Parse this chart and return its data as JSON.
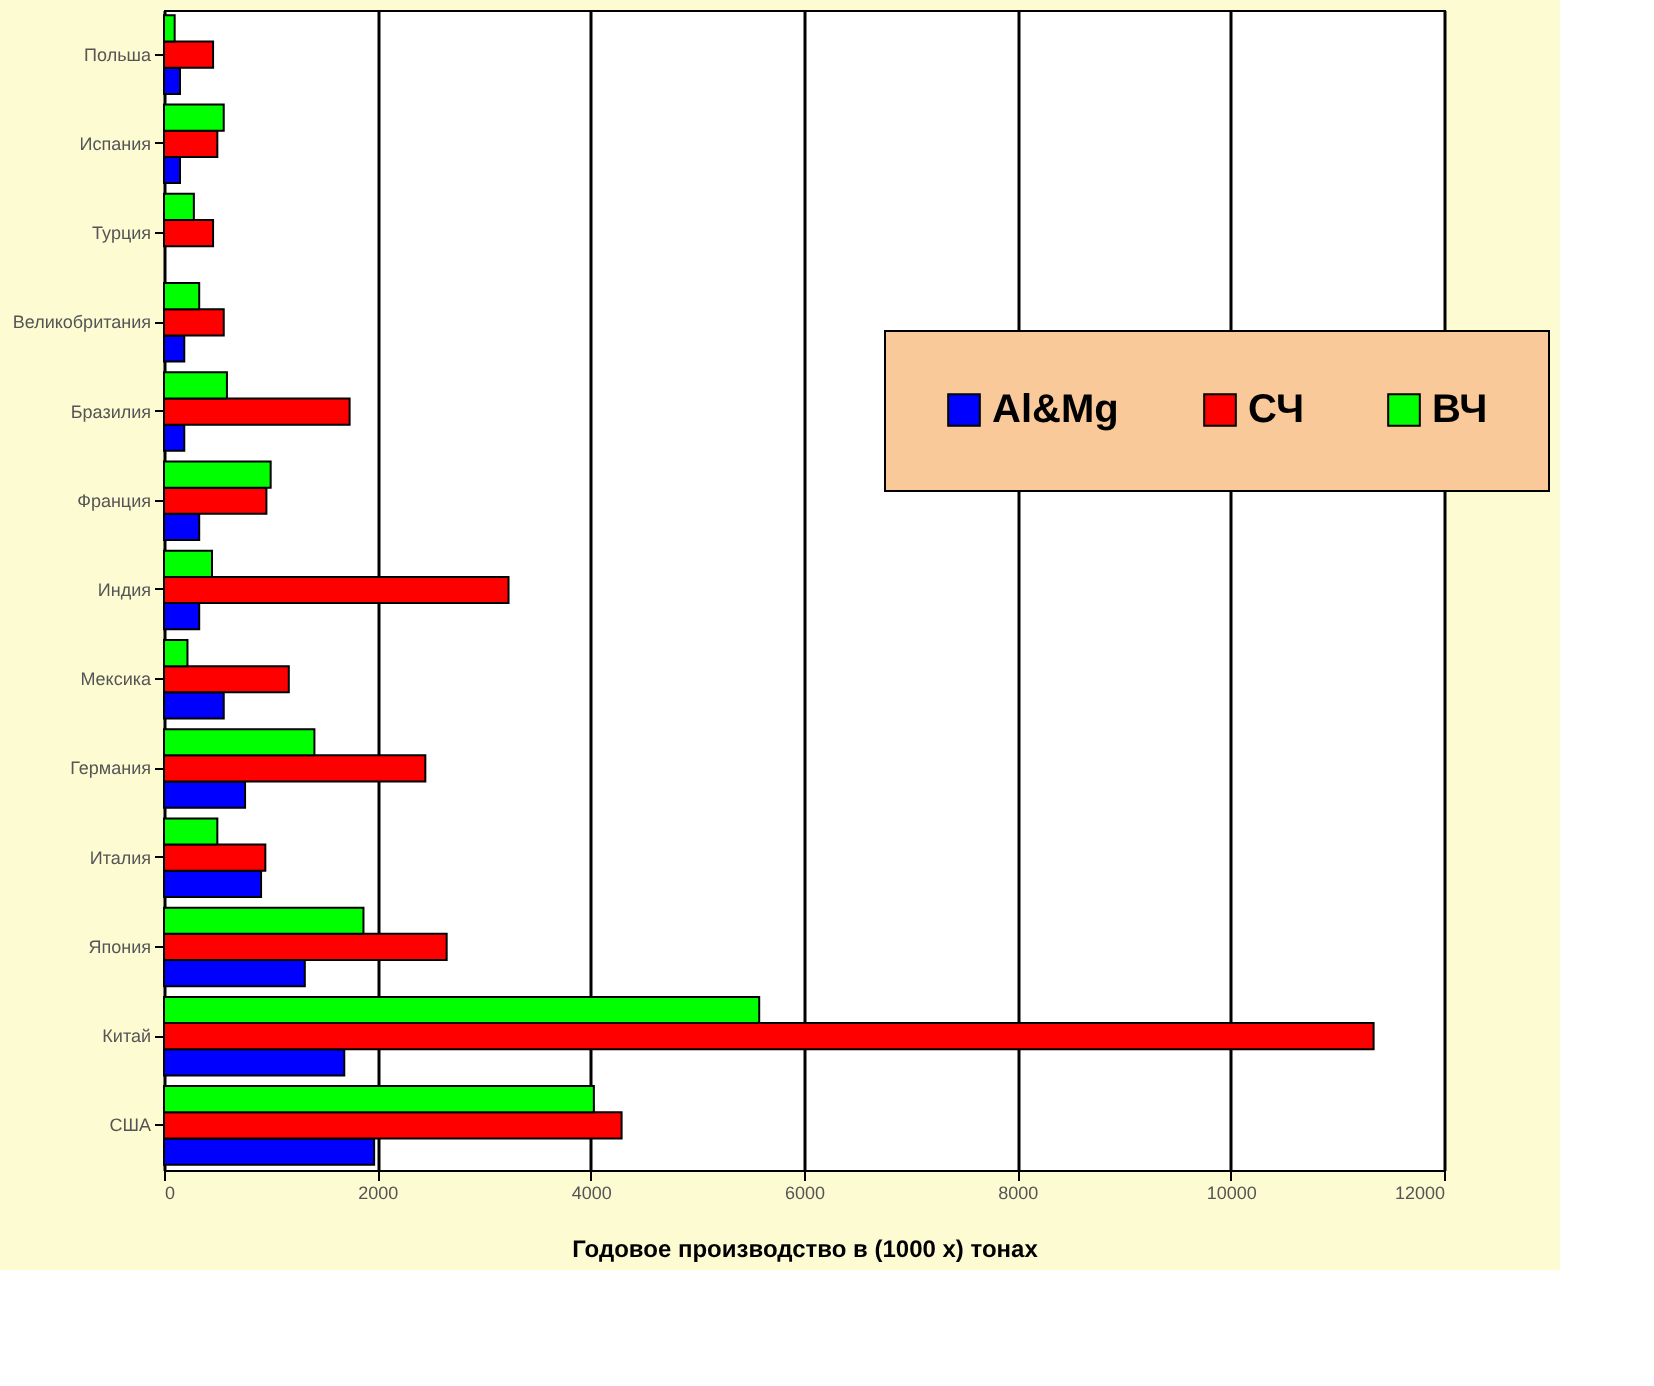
{
  "chart_data": {
    "type": "bar",
    "orientation": "horizontal",
    "categories": [
      "Польша",
      "Испания",
      "Турция",
      "Великобритания",
      "Бразилия",
      "Франция",
      "Индия",
      "Мексика",
      "Германия",
      "Италия",
      "Япония",
      "Китай",
      "США"
    ],
    "series": [
      {
        "name": "Al&Mg",
        "color": "#0000ff",
        "values": [
          150,
          150,
          null,
          190,
          190,
          330,
          330,
          560,
          760,
          910,
          1320,
          1690,
          1970
        ]
      },
      {
        "name": "СЧ",
        "color": "#ff0000",
        "values": [
          460,
          500,
          460,
          560,
          1740,
          960,
          3230,
          1170,
          2450,
          950,
          2650,
          11340,
          4290
        ]
      },
      {
        "name": "ВЧ",
        "color": "#00ff00",
        "values": [
          100,
          560,
          280,
          330,
          590,
          1000,
          450,
          220,
          1410,
          500,
          1870,
          5580,
          4030
        ]
      }
    ],
    "xlabel": "Годовое производство в (1000 х) тонах",
    "xlim": [
      0,
      12000
    ],
    "xticks": [
      0,
      2000,
      4000,
      6000,
      8000,
      10000,
      12000
    ],
    "grid": "x",
    "legend": "top right"
  }
}
